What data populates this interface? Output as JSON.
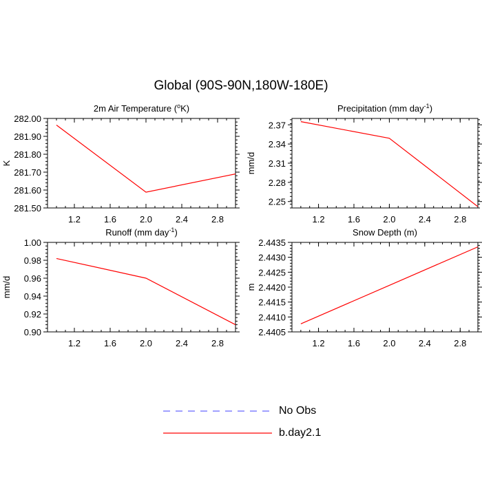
{
  "title": "Global (90S-90N,180W-180E)",
  "colors": {
    "obs": "#6666ff",
    "model": "#ff0000",
    "axis": "#000000"
  },
  "legend": [
    {
      "label": "No Obs",
      "style": "dashed",
      "color": "#6666ff"
    },
    {
      "label": "b.day2.1",
      "style": "solid",
      "color": "#ff0000"
    }
  ],
  "chart_data": [
    {
      "type": "line",
      "title": "2m Air Temperature (",
      "title_sup": "o",
      "title_suffix": "K)",
      "ylabel": "K",
      "xlim": [
        0.9,
        3.0
      ],
      "ylim": [
        281.5,
        282.0
      ],
      "xticks": [
        1.2,
        1.6,
        2.0,
        2.4,
        2.8
      ],
      "xtick_labels": [
        "1.2",
        "1.6",
        "2.0",
        "2.4",
        "2.8"
      ],
      "yticks": [
        281.5,
        281.6,
        281.7,
        281.8,
        281.9,
        282.0
      ],
      "ytick_labels": [
        "281.50",
        "281.60",
        "281.70",
        "281.80",
        "281.90",
        "282.00"
      ],
      "series": [
        {
          "name": "b.day2.1",
          "x": [
            1.0,
            2.0,
            3.0
          ],
          "y": [
            281.963,
            281.588,
            281.69
          ]
        }
      ]
    },
    {
      "type": "line",
      "title": "Precipitation (mm day",
      "title_sup": "-1",
      "title_suffix": ")",
      "ylabel": "mm/d",
      "xlim": [
        0.9,
        3.0
      ],
      "ylim": [
        2.24,
        2.38
      ],
      "xticks": [
        1.2,
        1.6,
        2.0,
        2.4,
        2.8
      ],
      "xtick_labels": [
        "1.2",
        "1.6",
        "2.0",
        "2.4",
        "2.8"
      ],
      "yticks": [
        2.25,
        2.28,
        2.31,
        2.34,
        2.37
      ],
      "ytick_labels": [
        "2.25",
        "2.28",
        "2.31",
        "2.34",
        "2.37"
      ],
      "series": [
        {
          "name": "b.day2.1",
          "x": [
            1.0,
            2.0,
            3.0
          ],
          "y": [
            2.375,
            2.349,
            2.242
          ]
        }
      ]
    },
    {
      "type": "line",
      "title": "Runoff (mm day",
      "title_sup": "-1",
      "title_suffix": ")",
      "ylabel": "mm/d",
      "xlim": [
        0.9,
        3.0
      ],
      "ylim": [
        0.9,
        1.0
      ],
      "xticks": [
        1.2,
        1.6,
        2.0,
        2.4,
        2.8
      ],
      "xtick_labels": [
        "1.2",
        "1.6",
        "2.0",
        "2.4",
        "2.8"
      ],
      "yticks": [
        0.9,
        0.92,
        0.94,
        0.96,
        0.98,
        1.0
      ],
      "ytick_labels": [
        "0.90",
        "0.92",
        "0.94",
        "0.96",
        "0.98",
        "1.00"
      ],
      "series": [
        {
          "name": "b.day2.1",
          "x": [
            1.0,
            2.0,
            3.0
          ],
          "y": [
            0.982,
            0.96,
            0.908
          ]
        }
      ]
    },
    {
      "type": "line",
      "title": "Snow Depth (m)",
      "title_sup": "",
      "title_suffix": "",
      "ylabel": "m",
      "xlim": [
        0.9,
        3.0
      ],
      "ylim": [
        2.4405,
        2.4435
      ],
      "xticks": [
        1.2,
        1.6,
        2.0,
        2.4,
        2.8
      ],
      "xtick_labels": [
        "1.2",
        "1.6",
        "2.0",
        "2.4",
        "2.8"
      ],
      "yticks": [
        2.4405,
        2.441,
        2.4415,
        2.442,
        2.4425,
        2.443,
        2.4435
      ],
      "ytick_labels": [
        "2.4405",
        "2.4410",
        "2.4415",
        "2.4420",
        "2.4425",
        "2.4430",
        "2.4435"
      ],
      "series": [
        {
          "name": "b.day2.1",
          "x": [
            1.0,
            2.0,
            3.0
          ],
          "y": [
            2.44077,
            2.44206,
            2.44335
          ]
        }
      ]
    }
  ]
}
